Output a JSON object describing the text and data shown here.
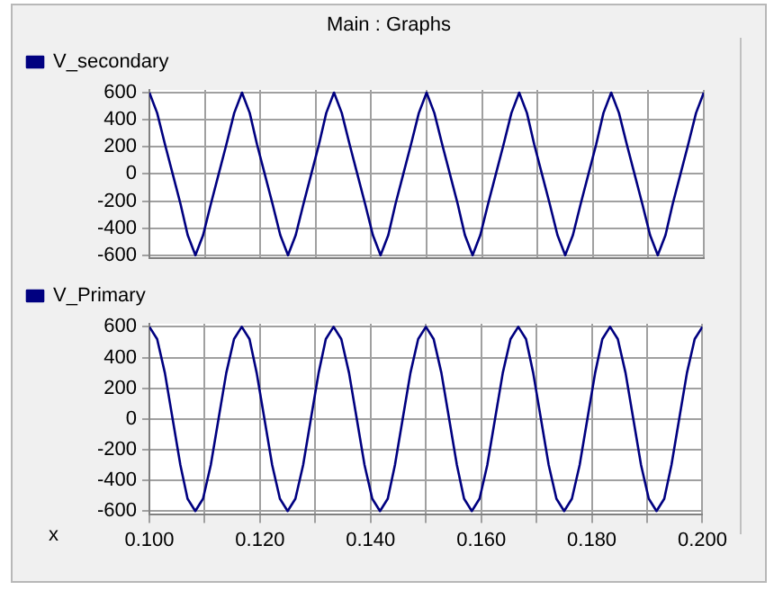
{
  "chart_data": [
    {
      "type": "line",
      "title": "Main : Graphs",
      "legend": "top left",
      "grid": true,
      "tick_labels": "y",
      "marker": "none",
      "line_style": "solid",
      "x": [
        0.1,
        0.1014,
        0.1028,
        0.1042,
        0.1056,
        0.1069,
        0.1083,
        0.1097,
        0.1111,
        0.1125,
        0.1139,
        0.1153,
        0.1167,
        0.1181,
        0.1194,
        0.1208,
        0.1222,
        0.1236,
        0.125,
        0.1264,
        0.1278,
        0.1292,
        0.1306,
        0.1319,
        0.1333,
        0.1347,
        0.1361,
        0.1375,
        0.1389,
        0.1403,
        0.1417,
        0.1431,
        0.1444,
        0.1458,
        0.1472,
        0.1486,
        0.15,
        0.1514,
        0.1528,
        0.1542,
        0.1556,
        0.1569,
        0.1583,
        0.1597,
        0.1611,
        0.1625,
        0.1639,
        0.1653,
        0.1667,
        0.1681,
        0.1694,
        0.1708,
        0.1722,
        0.1736,
        0.175,
        0.1764,
        0.1778,
        0.1792,
        0.1806,
        0.1819,
        0.1833,
        0.1847,
        0.1861,
        0.1875,
        0.1889,
        0.1903,
        0.1917,
        0.1931,
        0.1944,
        0.1958,
        0.1972,
        0.1986,
        0.2
      ],
      "xlim": [
        0.1,
        0.2
      ],
      "xticks": [
        0.1,
        0.11,
        0.12,
        0.13,
        0.14,
        0.15,
        0.16,
        0.17,
        0.18,
        0.19,
        0.2
      ],
      "ylim": [
        -620,
        620
      ],
      "yticks": [
        -600,
        -400,
        -200,
        0,
        200,
        400,
        600
      ],
      "series": [
        {
          "name": "V_secondary",
          "color": "#000080",
          "values": [
            600,
            450,
            220,
            0,
            -220,
            -450,
            -600,
            -450,
            -220,
            0,
            220,
            450,
            600,
            450,
            220,
            0,
            -220,
            -450,
            -600,
            -450,
            -220,
            0,
            220,
            450,
            600,
            450,
            220,
            0,
            -220,
            -450,
            -600,
            -450,
            -220,
            0,
            220,
            450,
            600,
            450,
            220,
            0,
            -220,
            -450,
            -600,
            -450,
            -220,
            0,
            220,
            450,
            600,
            450,
            220,
            0,
            -220,
            -450,
            -600,
            -450,
            -220,
            0,
            220,
            450,
            600,
            450,
            220,
            0,
            -220,
            -450,
            -600,
            -450,
            -220,
            0,
            220,
            450,
            600
          ]
        }
      ]
    },
    {
      "type": "line",
      "xlabel": "x",
      "legend": "top left",
      "grid": true,
      "marker": "none",
      "line_style": "solid",
      "x": [
        0.1,
        0.1014,
        0.1028,
        0.1042,
        0.1056,
        0.1069,
        0.1083,
        0.1097,
        0.1111,
        0.1125,
        0.1139,
        0.1153,
        0.1167,
        0.1181,
        0.1194,
        0.1208,
        0.1222,
        0.1236,
        0.125,
        0.1264,
        0.1278,
        0.1292,
        0.1306,
        0.1319,
        0.1333,
        0.1347,
        0.1361,
        0.1375,
        0.1389,
        0.1403,
        0.1417,
        0.1431,
        0.1444,
        0.1458,
        0.1472,
        0.1486,
        0.15,
        0.1514,
        0.1528,
        0.1542,
        0.1556,
        0.1569,
        0.1583,
        0.1597,
        0.1611,
        0.1625,
        0.1639,
        0.1653,
        0.1667,
        0.1681,
        0.1694,
        0.1708,
        0.1722,
        0.1736,
        0.175,
        0.1764,
        0.1778,
        0.1792,
        0.1806,
        0.1819,
        0.1833,
        0.1847,
        0.1861,
        0.1875,
        0.1889,
        0.1903,
        0.1917,
        0.1931,
        0.1944,
        0.1958,
        0.1972,
        0.1986,
        0.2
      ],
      "xlim": [
        0.1,
        0.2
      ],
      "xticks": [
        {
          "value": 0.1,
          "label": "0.100"
        },
        {
          "value": 0.11,
          "label": null
        },
        {
          "value": 0.12,
          "label": "0.120"
        },
        {
          "value": 0.13,
          "label": null
        },
        {
          "value": 0.14,
          "label": "0.140"
        },
        {
          "value": 0.15,
          "label": null
        },
        {
          "value": 0.16,
          "label": "0.160"
        },
        {
          "value": 0.17,
          "label": null
        },
        {
          "value": 0.18,
          "label": "0.180"
        },
        {
          "value": 0.19,
          "label": null
        },
        {
          "value": 0.2,
          "label": "0.200"
        }
      ],
      "ylim": [
        -620,
        620
      ],
      "yticks": [
        -600,
        -400,
        -200,
        0,
        200,
        400,
        600
      ],
      "series": [
        {
          "name": "V_Primary",
          "color": "#000080",
          "values": [
            600,
            520,
            300,
            0,
            -300,
            -520,
            -600,
            -520,
            -300,
            0,
            300,
            520,
            600,
            520,
            300,
            0,
            -300,
            -520,
            -600,
            -520,
            -300,
            0,
            300,
            520,
            600,
            520,
            300,
            0,
            -300,
            -520,
            -600,
            -520,
            -300,
            0,
            300,
            520,
            600,
            520,
            300,
            0,
            -300,
            -520,
            -600,
            -520,
            -300,
            0,
            300,
            520,
            600,
            520,
            300,
            0,
            -300,
            -520,
            -600,
            -520,
            -300,
            0,
            300,
            520,
            600,
            520,
            300,
            0,
            -300,
            -520,
            -600,
            -520,
            -300,
            0,
            300,
            520,
            600
          ]
        }
      ]
    }
  ]
}
